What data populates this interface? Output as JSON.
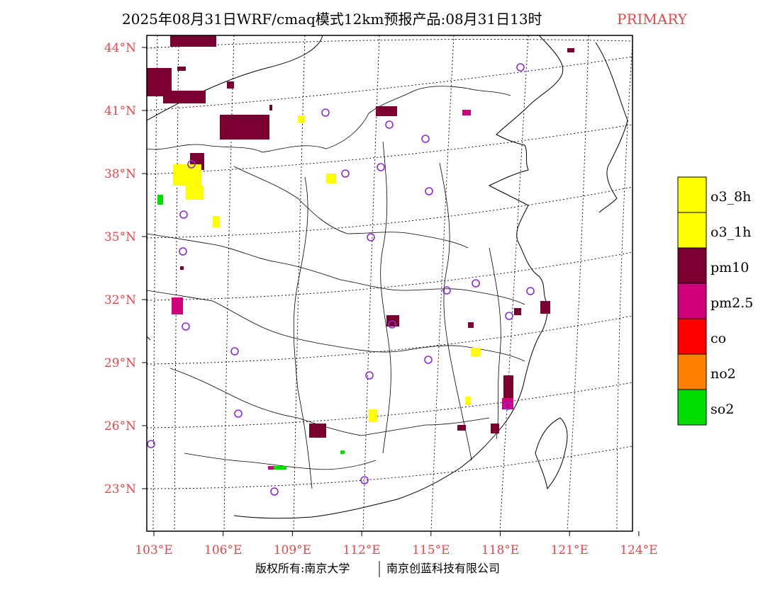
{
  "title": {
    "main": "2025年08月31日WRF/cmaq模式12km预报产品:08月31日13时",
    "tag": "PRIMARY"
  },
  "credit": {
    "left": "版权所有:南京大学",
    "right": "南京创蓝科技有限公司"
  },
  "axes": {
    "lon_labels": [
      "103°E",
      "106°E",
      "109°E",
      "112°E",
      "115°E",
      "118°E",
      "121°E",
      "124°E"
    ],
    "lat_labels": [
      "44°N",
      "41°N",
      "38°N",
      "35°N",
      "32°N",
      "29°N",
      "26°N",
      "23°N"
    ],
    "lon_values": [
      103,
      106,
      109,
      112,
      115,
      118,
      121,
      124
    ],
    "lat_values": [
      44,
      41,
      38,
      35,
      32,
      29,
      26,
      23
    ]
  },
  "legend": [
    {
      "label": "o3_8h",
      "color": "#ffff00"
    },
    {
      "label": "o3_1h",
      "color": "#ffff00"
    },
    {
      "label": "pm10",
      "color": "#7a0030"
    },
    {
      "label": "pm2.5",
      "color": "#d0007a"
    },
    {
      "label": "co",
      "color": "#ff0000"
    },
    {
      "label": "no2",
      "color": "#ff8000"
    },
    {
      "label": "so2",
      "color": "#00dd00"
    }
  ],
  "colors": {
    "label": "#e8474a",
    "station": "#8a2be2"
  }
}
